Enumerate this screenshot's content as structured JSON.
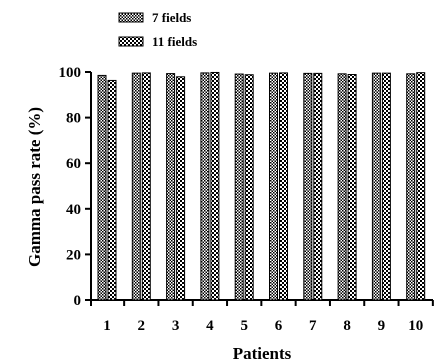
{
  "chart_data": {
    "type": "bar",
    "xlabel": "Patients",
    "ylabel": "Gamma pass rate (%)",
    "ylim": [
      0,
      100
    ],
    "yticks": [
      0,
      20,
      40,
      60,
      80,
      100
    ],
    "grid": false,
    "legend_position": "top-left",
    "categories": [
      "1",
      "2",
      "3",
      "4",
      "5",
      "6",
      "7",
      "8",
      "9",
      "10"
    ],
    "series": [
      {
        "name": "7 fields",
        "pattern": "dense-checker",
        "values": [
          98.5,
          99.5,
          99.3,
          99.6,
          99.1,
          99.5,
          99.4,
          99.2,
          99.5,
          99.2
        ]
      },
      {
        "name": "11 fields",
        "pattern": "checker",
        "values": [
          96.3,
          99.6,
          97.9,
          99.8,
          98.8,
          99.6,
          99.4,
          98.9,
          99.5,
          99.7
        ]
      }
    ]
  }
}
